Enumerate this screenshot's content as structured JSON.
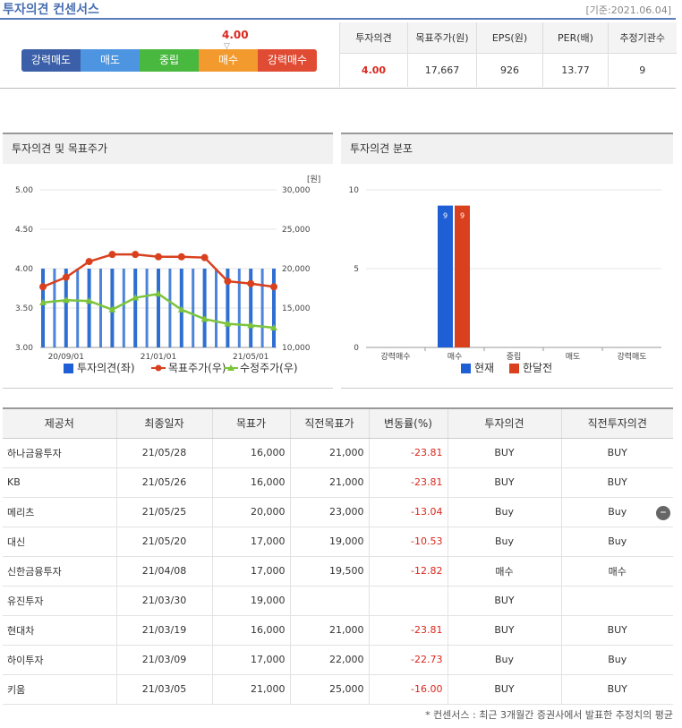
{
  "header": {
    "title": "투자의견 컨센서스",
    "base_date": "[기준:2021.06.04]"
  },
  "scale": {
    "labels": [
      "강력매도",
      "매도",
      "중립",
      "매수",
      "강력매수"
    ],
    "current_value": "4.00",
    "marker_glyph": "▽"
  },
  "summary": {
    "headers": [
      "투자의견",
      "목표주가(원)",
      "EPS(원)",
      "PER(배)",
      "추정기관수"
    ],
    "values": [
      "4.00",
      "17,667",
      "926",
      "13.77",
      "9"
    ]
  },
  "panels": {
    "left_title": "투자의견 및 목표주가",
    "right_title": "투자의견 분포"
  },
  "chart_data": [
    {
      "type": "bar+line",
      "title": "투자의견 및 목표주가",
      "left_axis": {
        "ticks": [
          "5.00",
          "4.50",
          "4.00",
          "3.50",
          "3.00"
        ],
        "ylim": [
          3.0,
          5.0
        ]
      },
      "right_axis": {
        "unit": "[원]",
        "ticks": [
          "30,000",
          "25,000",
          "20,000",
          "15,000",
          "10,000"
        ],
        "ylim": [
          10000,
          30000
        ]
      },
      "x_ticks": [
        "20/09/01",
        "21/01/01",
        "21/05/01"
      ],
      "bar_values": [
        4.0,
        4.0,
        4.0,
        4.0,
        4.0,
        4.0,
        4.0,
        4.0,
        4.0,
        4.0,
        4.0
      ],
      "series": [
        {
          "name": "목표주가(우)",
          "color": "#d9401e",
          "values": [
            17700,
            18900,
            20900,
            21800,
            21800,
            21500,
            21500,
            21400,
            18400,
            18100,
            17700
          ]
        },
        {
          "name": "수정주가(우)",
          "color": "#7cc53a",
          "values": [
            15700,
            16000,
            15900,
            14800,
            16300,
            16800,
            14800,
            13600,
            13000,
            12800,
            12500
          ]
        }
      ],
      "legend": [
        "투자의견(좌)",
        "목표주가(우)",
        "수정주가(우)"
      ],
      "legend_position": "bottom"
    },
    {
      "type": "bar",
      "title": "투자의견 분포",
      "y_ticks": [
        "10",
        "5",
        "0"
      ],
      "ylim": [
        0,
        10
      ],
      "categories": [
        "강력매수",
        "매수",
        "중립",
        "매도",
        "강력매도"
      ],
      "series": [
        {
          "name": "현재",
          "color": "#1f5fd6",
          "values": [
            0,
            9,
            0,
            0,
            0
          ]
        },
        {
          "name": "한달전",
          "color": "#d9401e",
          "values": [
            0,
            9,
            0,
            0,
            0
          ]
        }
      ],
      "bar_labels": [
        "9",
        "9"
      ],
      "legend_position": "bottom"
    }
  ],
  "table": {
    "headers": [
      "제공처",
      "최종일자",
      "목표가",
      "직전목표가",
      "변동률(%)",
      "투자의견",
      "직전투자의견"
    ],
    "rows": [
      [
        "하나금융투자",
        "21/05/28",
        "16,000",
        "21,000",
        "-23.81",
        "BUY",
        "BUY"
      ],
      [
        "KB",
        "21/05/26",
        "16,000",
        "21,000",
        "-23.81",
        "BUY",
        "BUY"
      ],
      [
        "메리츠",
        "21/05/25",
        "20,000",
        "23,000",
        "-13.04",
        "Buy",
        "Buy"
      ],
      [
        "대신",
        "21/05/20",
        "17,000",
        "19,000",
        "-10.53",
        "Buy",
        "Buy"
      ],
      [
        "신한금융투자",
        "21/04/08",
        "17,000",
        "19,500",
        "-12.82",
        "매수",
        "매수"
      ],
      [
        "유진투자",
        "21/03/30",
        "19,000",
        "",
        "",
        "BUY",
        ""
      ],
      [
        "현대차",
        "21/03/19",
        "16,000",
        "21,000",
        "-23.81",
        "BUY",
        "BUY"
      ],
      [
        "하이투자",
        "21/03/09",
        "17,000",
        "22,000",
        "-22.73",
        "Buy",
        "Buy"
      ],
      [
        "키움",
        "21/03/05",
        "21,000",
        "25,000",
        "-16.00",
        "BUY",
        "BUY"
      ]
    ]
  },
  "footnote": "* 컨센서스 : 최근 3개월간 증권사에서 발표한 추정치의 평균"
}
